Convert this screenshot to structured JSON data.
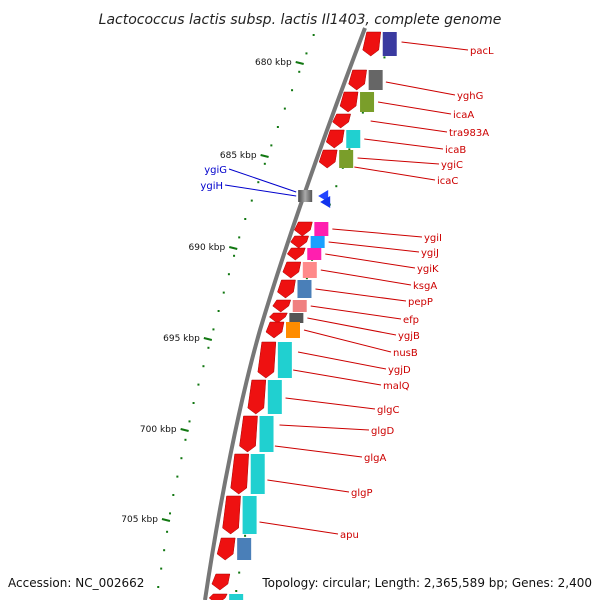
{
  "title": "Lactococcus lactis subsp. lactis Il1403, complete genome",
  "accession": "Accession: NC_002662",
  "topology": "Topology: circular; Length: 2,365,589 bp; Genes: 2,400",
  "scale_labels": [
    "680 kbp",
    "685 kbp",
    "690 kbp",
    "695 kbp",
    "700 kbp",
    "705 kbp"
  ],
  "genes_reverse": [
    "ygiG",
    "ygiH"
  ],
  "genes_forward": [
    "pacL",
    "yghG",
    "icaA",
    "tra983A",
    "icaB",
    "ygiC",
    "icaC",
    "ygiI",
    "ygiJ",
    "ygiK",
    "ksgA",
    "pepP",
    "efp",
    "ygjB",
    "nusB",
    "ygjD",
    "malQ",
    "glgC",
    "glgD",
    "glgA",
    "glgP",
    "apu"
  ],
  "colors": {
    "cds": "#ee1111",
    "forward_label": "#cc0000",
    "reverse_label": "#0000cc",
    "scale_tick": "#117711",
    "backbone": "#777777"
  }
}
